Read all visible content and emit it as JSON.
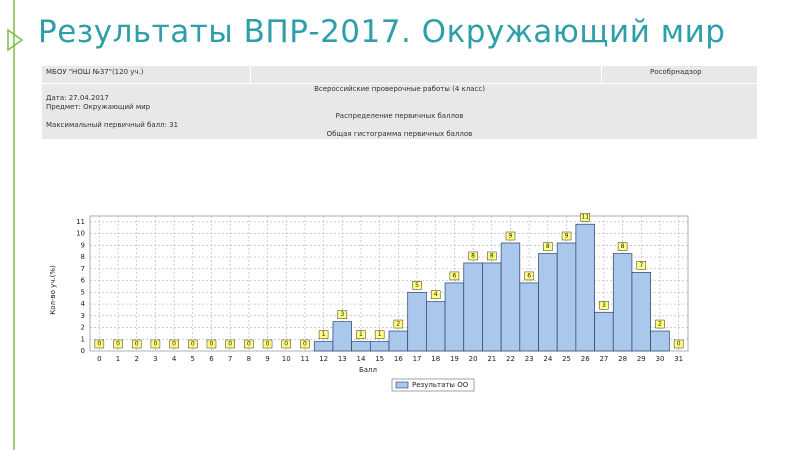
{
  "header": {
    "title": "Результаты ВПР-2017. Окружающий мир"
  },
  "table": {
    "rows": [
      [
        "МБОУ \"НОШ №37\"(120 уч.)",
        "Рособрнадзор"
      ],
      [
        "Всероссийские проверочные работы (4 класс)"
      ],
      [
        "Дата: 27.04.2017"
      ],
      [
        "Предмет: Окружающий мир"
      ],
      [
        "Распределение первичных баллов"
      ],
      [
        "Максимальный первичный балл: 31"
      ],
      [
        "Общая гистограмма первичных баллов"
      ]
    ]
  },
  "chart_data": {
    "type": "bar",
    "x_label": "Балл",
    "y_label": "Кол-во уч.(%)",
    "categories": [
      "0",
      "1",
      "2",
      "3",
      "4",
      "5",
      "6",
      "7",
      "8",
      "9",
      "10",
      "11",
      "12",
      "13",
      "14",
      "15",
      "16",
      "17",
      "18",
      "19",
      "20",
      "21",
      "22",
      "23",
      "24",
      "25",
      "26",
      "27",
      "28",
      "29",
      "30",
      "31"
    ],
    "series": [
      {
        "name": "Результаты ОО",
        "color": "#a9c8ec",
        "values": [
          0,
          0,
          0,
          0,
          0,
          0,
          0,
          0,
          0,
          0,
          0,
          0,
          0.8,
          2.5,
          0.8,
          0.8,
          1.7,
          5,
          4.2,
          5.8,
          7.5,
          7.5,
          9.2,
          5.8,
          8.3,
          9.2,
          10.8,
          3.3,
          8.3,
          6.7,
          1.7,
          0
        ],
        "value_labels": [
          "0",
          "0",
          "0",
          "0",
          "0",
          "0",
          "0",
          "0",
          "0",
          "0",
          "0",
          "0",
          "1",
          "3",
          "1",
          "1",
          "2",
          "5",
          "4",
          "6",
          "8",
          "8",
          "9",
          "6",
          "8",
          "9",
          "11",
          "3",
          "8",
          "7",
          "2",
          "0"
        ]
      }
    ],
    "ylim": [
      0,
      11.5
    ],
    "yticks": [
      0,
      1,
      2,
      3,
      4,
      5,
      6,
      7,
      8,
      9,
      10,
      11
    ],
    "grid": true,
    "legend": "bottom"
  }
}
